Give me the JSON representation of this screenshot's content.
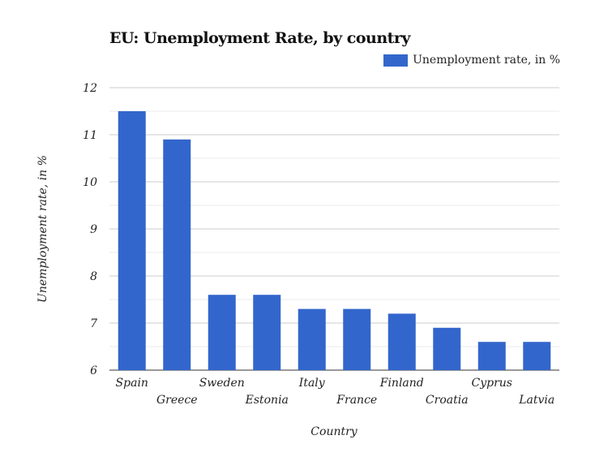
{
  "chart_data": {
    "type": "bar",
    "title": "EU: Unemployment Rate, by country",
    "xlabel": "Country",
    "ylabel": "Unemployment rate, in %",
    "categories": [
      "Spain",
      "Greece",
      "Sweden",
      "Estonia",
      "Italy",
      "France",
      "Finland",
      "Croatia",
      "Cyprus",
      "Latvia"
    ],
    "series": [
      {
        "name": "Unemployment rate, in %",
        "values": [
          11.5,
          10.9,
          7.6,
          7.6,
          7.3,
          7.3,
          7.2,
          6.9,
          6.6,
          6.6
        ],
        "color": "#3366cc"
      }
    ],
    "ylim": [
      6,
      12
    ],
    "yticks": [
      6,
      7,
      8,
      9,
      10,
      11,
      12
    ],
    "grid": true,
    "legend": "top-right"
  }
}
